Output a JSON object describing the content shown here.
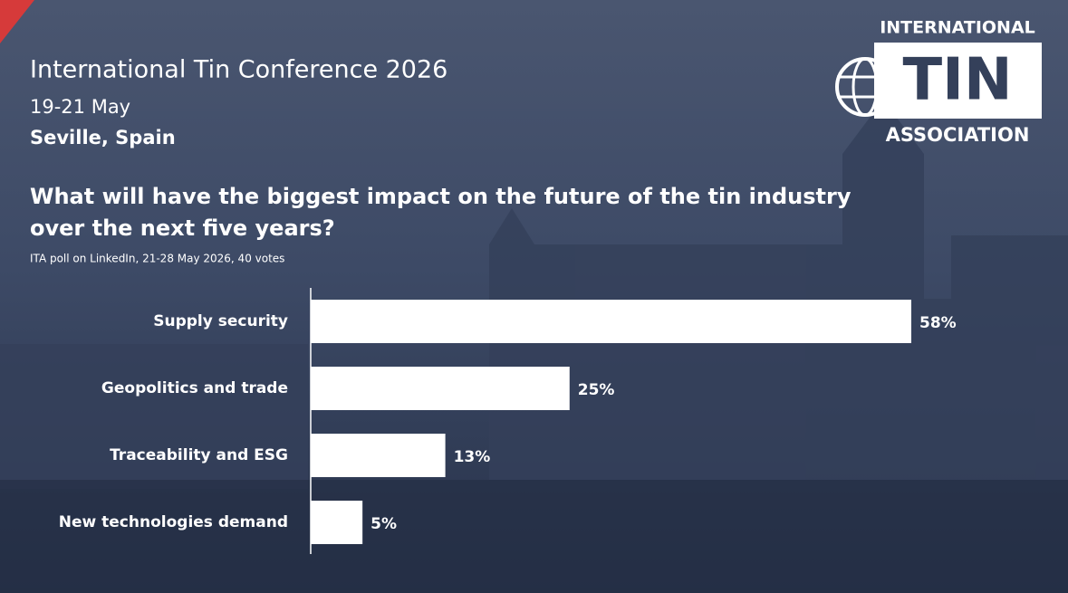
{
  "chart_data": {
    "type": "bar",
    "orientation": "horizontal",
    "title": "International Tin Conference 2026",
    "subtitle": [
      "19-21 May",
      "Seville, Spain"
    ],
    "question": [
      "What will have the biggest impact on the future of the tin industry",
      "over the next five years?"
    ],
    "source": "ITA poll on LinkedIn, 21-28 May 2026, 40 votes",
    "categories": [
      "Supply security",
      "Geopolitics and trade",
      "Traceability and ESG",
      "New technologies demand"
    ],
    "values": [
      58,
      25,
      13,
      5
    ],
    "value_labels": [
      "58%",
      "25%",
      "13%",
      "5%"
    ],
    "color": "#ffffff"
  },
  "logo": {
    "top": "INTERNATIONAL",
    "middle": "TIN",
    "bottom": "ASSOCIATION"
  }
}
